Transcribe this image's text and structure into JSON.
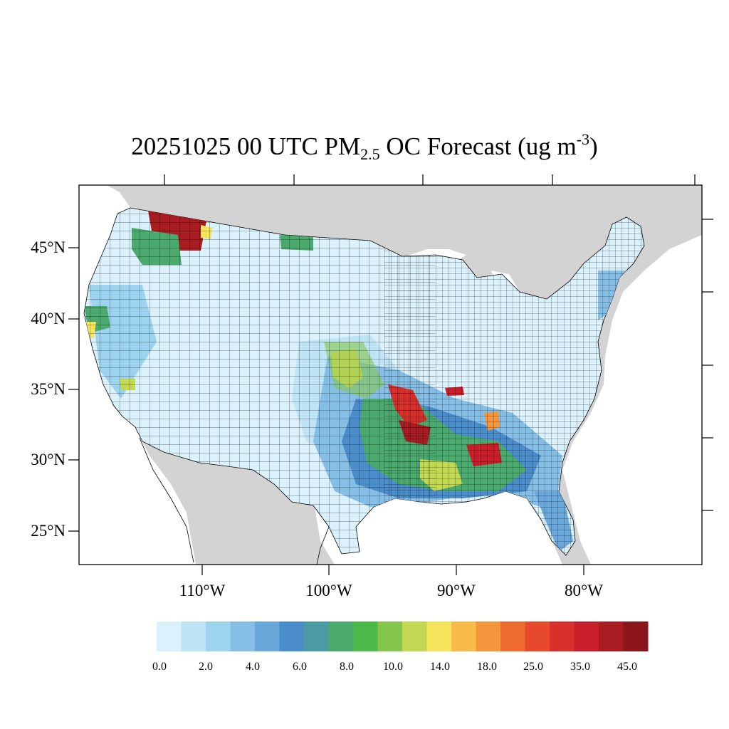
{
  "title": {
    "prefix": "20251025 00 UTC PM",
    "subscript": "2.5",
    "middle": " OC Forecast (ug m",
    "superscript": "-3",
    "suffix": ")"
  },
  "map": {
    "region": "Contiguous United States",
    "lat_labels": [
      "45°N",
      "40°N",
      "35°N",
      "30°N",
      "25°N"
    ],
    "lon_labels": [
      "110°W",
      "100°W",
      "90°W",
      "80°W"
    ],
    "colors": {
      "land_outside": "#d3d3d3",
      "water": "#ffffff",
      "county_border": "#000000"
    },
    "hotspots": [
      {
        "area": "northern Idaho / western Montana",
        "level": "35.0+"
      },
      {
        "area": "northeastern Montana",
        "level": "8.0-10.0"
      },
      {
        "area": "northern California",
        "level": "8.0-14.0"
      },
      {
        "area": "Oklahoma / Kansas border",
        "level": "10.0-18.0"
      },
      {
        "area": "northeastern Oklahoma / Arkansas",
        "level": "25.0-45.0"
      },
      {
        "area": "southern Illinois",
        "level": "25.0-45.0"
      },
      {
        "area": "Mississippi / Alabama",
        "level": "18.0-45.0"
      },
      {
        "area": "Louisiana",
        "level": "10.0-25.0"
      }
    ]
  },
  "colorbar": {
    "colors": [
      "#dbf1fc",
      "#bfe4f6",
      "#9cd4ef",
      "#86bfe6",
      "#6aa8db",
      "#4b8cca",
      "#4a9ba3",
      "#4aa96c",
      "#4bb84a",
      "#84c64c",
      "#c2d852",
      "#f5e45c",
      "#f7bc4a",
      "#f5953c",
      "#ef6a2f",
      "#e6492b",
      "#d9302c",
      "#c81f2a",
      "#a81c22",
      "#8c161b"
    ],
    "labels": [
      "0.0",
      "2.0",
      "4.0",
      "6.0",
      "8.0",
      "10.0",
      "14.0",
      "18.0",
      "25.0",
      "35.0",
      "45.0"
    ]
  }
}
